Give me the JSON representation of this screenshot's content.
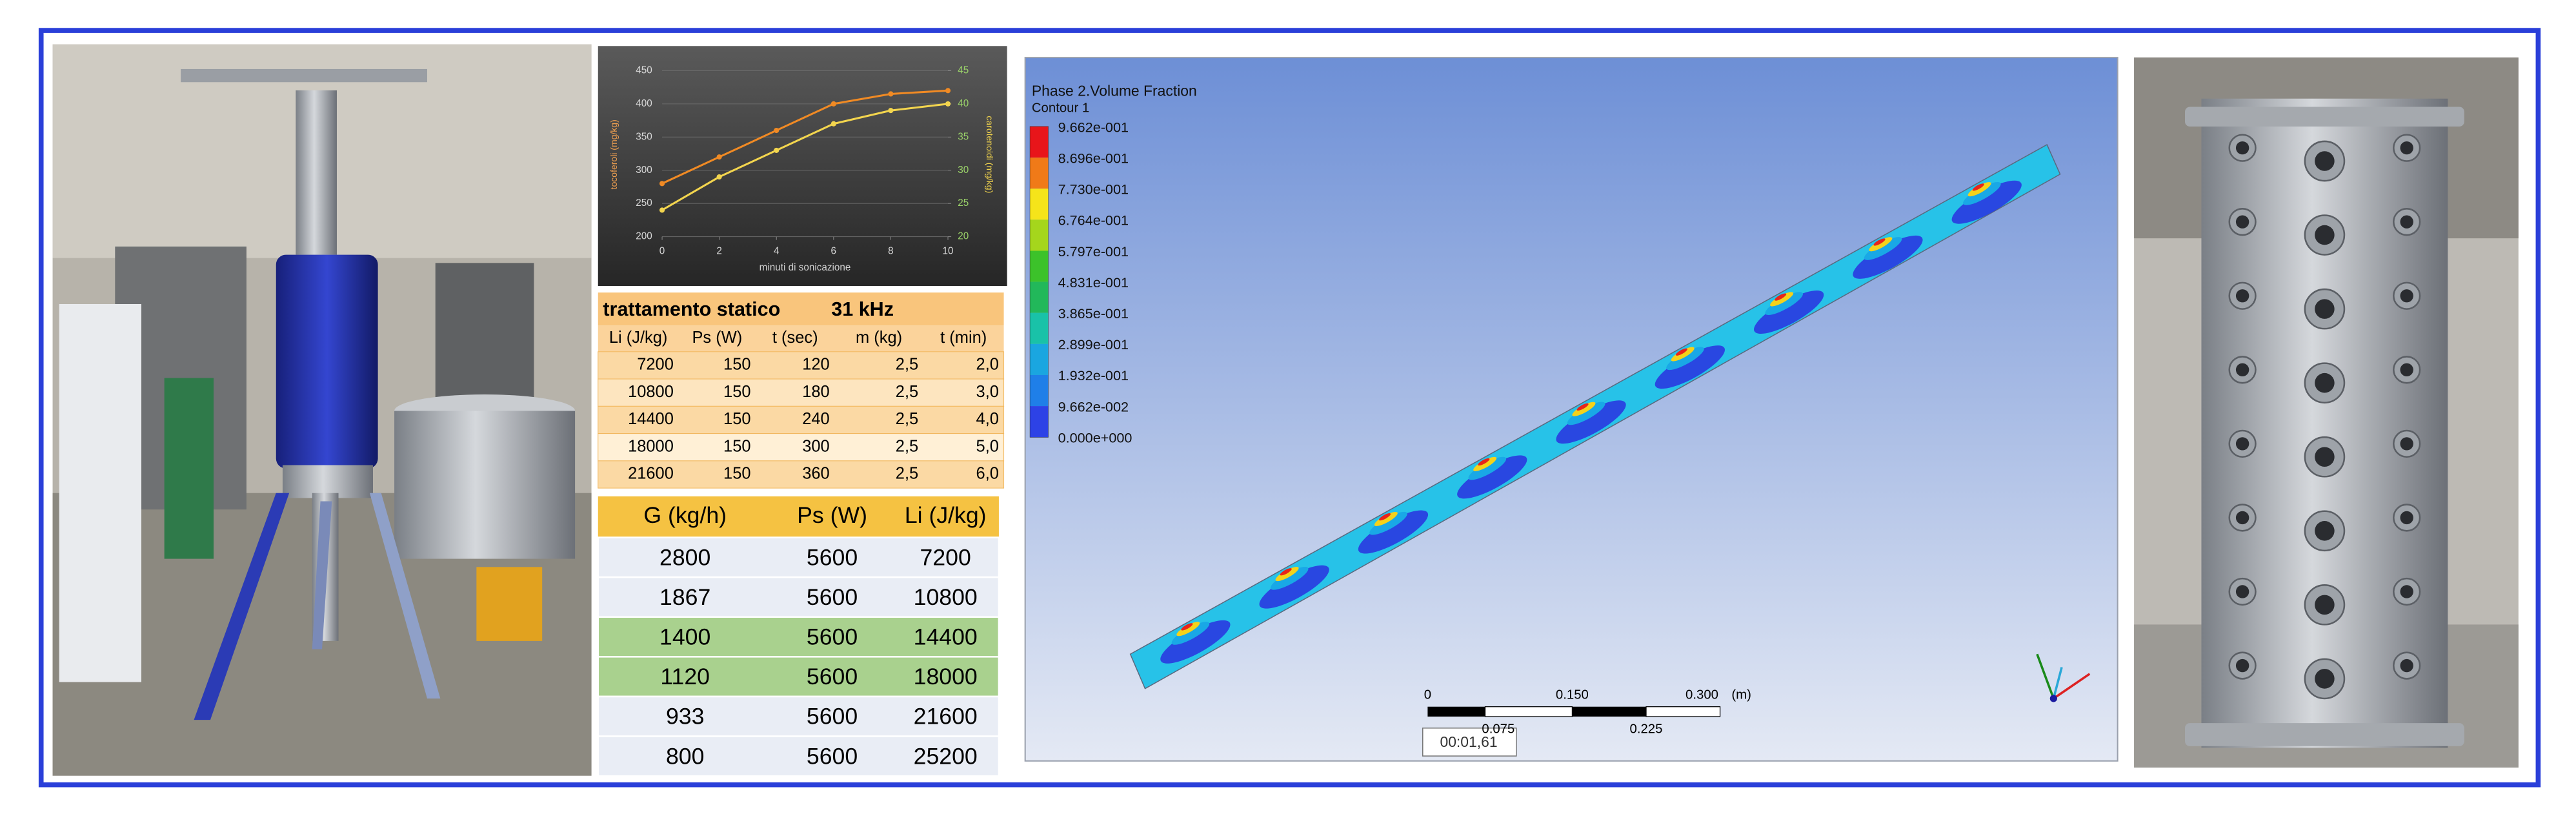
{
  "chart_data": {
    "type": "line",
    "x_label": "minuti di sonicazione",
    "y_label": "tocoferoli (mg/kg)",
    "y2_label": "carotenoidi (mg/kg)",
    "x": [
      0,
      2,
      4,
      6,
      8,
      10
    ],
    "xlim": [
      0,
      10
    ],
    "xticks": [
      0,
      2,
      4,
      6,
      8,
      10
    ],
    "ylim": [
      200,
      450
    ],
    "yticks": [
      200,
      250,
      300,
      350,
      400,
      450
    ],
    "y2lim": [
      20,
      45
    ],
    "y2ticks": [
      20,
      25,
      30,
      35,
      40,
      45
    ],
    "grid": true,
    "series": [
      {
        "color": "#f08a24",
        "values": [
          280,
          320,
          360,
          400,
          415,
          420
        ]
      },
      {
        "color": "#f3d54e",
        "axis": "y2",
        "values": [
          24,
          29,
          33,
          37,
          39,
          40
        ]
      }
    ]
  },
  "table_static": {
    "title": "trattamento statico",
    "frequency": "31 kHz",
    "headers": [
      "Li (J/kg)",
      "Ps (W)",
      "t (sec)",
      "m (kg)",
      "t (min)"
    ],
    "rows": [
      [
        "7200",
        "150",
        "120",
        "2,5",
        "2,0"
      ],
      [
        "10800",
        "150",
        "180",
        "2,5",
        "3,0"
      ],
      [
        "14400",
        "150",
        "240",
        "2,5",
        "4,0"
      ],
      [
        "18000",
        "150",
        "300",
        "2,5",
        "5,0"
      ],
      [
        "21600",
        "150",
        "360",
        "2,5",
        "6,0"
      ]
    ]
  },
  "table_flow": {
    "headers": [
      "G (kg/h)",
      "Ps (W)",
      "Li (J/kg)"
    ],
    "rows": [
      [
        "2800",
        "5600",
        "7200"
      ],
      [
        "1867",
        "5600",
        "10800"
      ],
      [
        "1400",
        "5600",
        "14400"
      ],
      [
        "1120",
        "5600",
        "18000"
      ],
      [
        "933",
        "5600",
        "21600"
      ],
      [
        "800",
        "5600",
        "25200"
      ]
    ]
  },
  "cfd": {
    "title": "Phase 2.Volume Fraction",
    "subtitle": "Contour 1",
    "legend": [
      "9.662e-001",
      "8.696e-001",
      "7.730e-001",
      "6.764e-001",
      "5.797e-001",
      "4.831e-001",
      "3.865e-001",
      "2.899e-001",
      "1.932e-001",
      "9.662e-002",
      "0.000e+000"
    ],
    "scale_top": [
      "0",
      "0.150",
      "0.300",
      "(m)"
    ],
    "scale_bottom": [
      "0.075",
      "0.225"
    ],
    "timer": "00:01,61"
  }
}
